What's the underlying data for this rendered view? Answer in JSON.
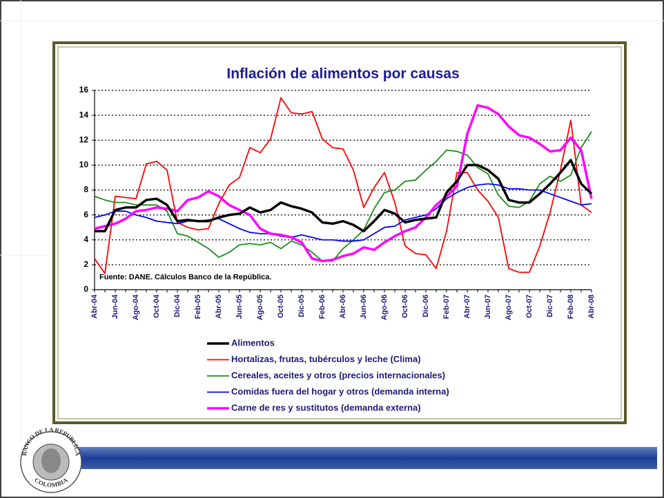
{
  "chart_data": {
    "type": "line",
    "title": "Inflación de alimentos por causas",
    "source": "Fuente: DANE. Cálculos Banco de la República.",
    "categories": [
      "Abr-04",
      null,
      "Jun-04",
      null,
      "Ago-04",
      null,
      "Oct-04",
      null,
      "Dic-04",
      null,
      "Feb-05",
      null,
      "Abr-05",
      null,
      "Jun-05",
      null,
      "Ago-05",
      null,
      "Oct-05",
      null,
      "Dic-05",
      null,
      "Feb-06",
      null,
      "Abr-06",
      null,
      "Jun-06",
      null,
      "Ago-06",
      null,
      "Oct-06",
      null,
      "Dic-06",
      null,
      "Feb-07",
      null,
      "Abr-07",
      null,
      "Jun-07",
      null,
      "Ago-07",
      null,
      "Oct-07",
      null,
      "Dic-07",
      null,
      "Feb-08",
      null,
      "Abr-08"
    ],
    "ylim": [
      0,
      16
    ],
    "yticks": [
      0,
      2,
      4,
      6,
      8,
      10,
      12,
      14,
      16
    ],
    "grid": true,
    "legend": "bottom",
    "series": [
      {
        "name": "Alimentos",
        "color": "#000000",
        "width": 3.5,
        "values": [
          4.7,
          4.7,
          6.4,
          6.6,
          6.6,
          7.2,
          7.3,
          6.8,
          5.5,
          5.6,
          5.5,
          5.5,
          5.8,
          6.0,
          6.1,
          6.6,
          6.2,
          6.4,
          7.0,
          6.7,
          6.5,
          6.2,
          5.4,
          5.3,
          5.5,
          5.2,
          4.7,
          5.5,
          6.4,
          6.1,
          5.4,
          5.6,
          5.7,
          5.8,
          7.8,
          8.7,
          10.0,
          10.0,
          9.6,
          8.9,
          7.2,
          7.0,
          7.0,
          7.7,
          8.5,
          9.4,
          10.4,
          8.5,
          7.7
        ]
      },
      {
        "name": "Hortalizas, frutas, tubérculos y leche (Clima)",
        "color": "#ff0000",
        "width": 1.8,
        "values": [
          2.5,
          1.3,
          7.5,
          7.4,
          7.3,
          10.1,
          10.3,
          9.6,
          5.4,
          5.0,
          4.8,
          4.9,
          6.9,
          8.4,
          9.0,
          11.4,
          11.0,
          12.1,
          15.4,
          14.2,
          14.1,
          14.3,
          12.1,
          11.4,
          11.3,
          9.6,
          6.6,
          8.2,
          9.4,
          7.0,
          3.5,
          2.9,
          2.8,
          1.7,
          4.7,
          9.4,
          9.4,
          8.0,
          7.1,
          5.8,
          1.7,
          1.4,
          1.4,
          3.5,
          6.2,
          9.6,
          13.6,
          6.8,
          6.2
        ]
      },
      {
        "name": "Cereales, aceites y otros (precios internacionales)",
        "color": "#1a8c1a",
        "width": 1.8,
        "values": [
          7.5,
          7.2,
          7.0,
          7.0,
          6.8,
          6.8,
          6.8,
          6.3,
          4.5,
          4.3,
          3.8,
          3.3,
          2.6,
          3.0,
          3.6,
          3.7,
          3.6,
          3.8,
          3.3,
          3.9,
          3.6,
          3.0,
          2.3,
          2.3,
          3.3,
          4.0,
          4.8,
          6.5,
          7.8,
          8.0,
          8.7,
          8.8,
          9.6,
          10.3,
          11.2,
          11.1,
          10.8,
          9.8,
          9.3,
          7.6,
          6.7,
          6.6,
          7.1,
          8.5,
          9.1,
          8.7,
          9.2,
          11.4,
          12.7
        ]
      },
      {
        "name": "Comidas fuera del hogar y otros (demanda interna)",
        "color": "#0000ff",
        "width": 1.8,
        "values": [
          5.8,
          6.0,
          6.3,
          6.3,
          6.0,
          5.8,
          5.5,
          5.4,
          5.3,
          5.5,
          5.5,
          5.6,
          5.7,
          5.3,
          4.9,
          4.6,
          4.5,
          4.5,
          4.3,
          4.2,
          4.4,
          4.2,
          4.0,
          4.0,
          3.9,
          3.9,
          4.0,
          4.5,
          5.0,
          5.1,
          5.6,
          5.8,
          6.0,
          6.5,
          7.3,
          7.8,
          8.2,
          8.4,
          8.5,
          8.4,
          8.1,
          8.1,
          8.0,
          8.0,
          7.7,
          7.4,
          7.1,
          6.8,
          6.9
        ]
      },
      {
        "name": "Carne de res y sustitutos (demanda externa)",
        "color": "#ff00ff",
        "width": 3.5,
        "values": [
          4.9,
          5.1,
          5.3,
          5.7,
          6.3,
          6.4,
          6.6,
          6.5,
          6.3,
          7.2,
          7.4,
          7.9,
          7.5,
          6.8,
          6.4,
          6.0,
          4.9,
          4.5,
          4.4,
          4.2,
          3.8,
          2.5,
          2.3,
          2.4,
          2.7,
          2.9,
          3.4,
          3.2,
          3.8,
          4.3,
          4.7,
          5.0,
          5.8,
          6.8,
          7.5,
          8.3,
          12.5,
          14.8,
          14.6,
          14.1,
          13.1,
          12.4,
          12.2,
          11.7,
          11.1,
          11.2,
          12.2,
          11.2,
          7.3
        ]
      }
    ]
  },
  "logo": {
    "top": "BANCO DE LA REPUBLICA",
    "bottom": "COLOMBIA"
  }
}
